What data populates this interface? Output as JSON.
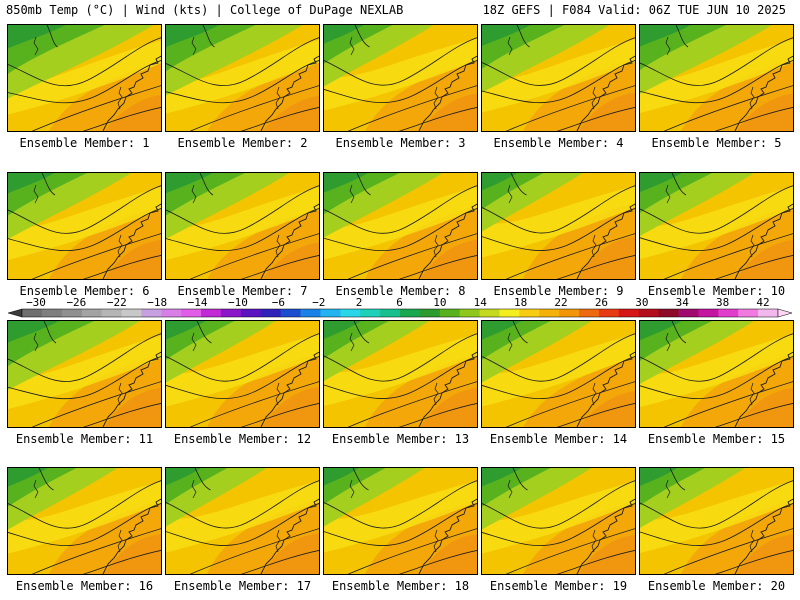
{
  "header": {
    "left": "850mb Temp (°C) | Wind (kts) | College of DuPage NEXLAB",
    "right": "18Z GEFS | F084 Valid: 06Z TUE JUN 10 2025"
  },
  "members": [
    {
      "label": "Ensemble Member: 1"
    },
    {
      "label": "Ensemble Member: 2"
    },
    {
      "label": "Ensemble Member: 3"
    },
    {
      "label": "Ensemble Member: 4"
    },
    {
      "label": "Ensemble Member: 5"
    },
    {
      "label": "Ensemble Member: 6"
    },
    {
      "label": "Ensemble Member: 7"
    },
    {
      "label": "Ensemble Member: 8"
    },
    {
      "label": "Ensemble Member: 9"
    },
    {
      "label": "Ensemble Member: 10"
    },
    {
      "label": "Ensemble Member: 11"
    },
    {
      "label": "Ensemble Member: 12"
    },
    {
      "label": "Ensemble Member: 13"
    },
    {
      "label": "Ensemble Member: 14"
    },
    {
      "label": "Ensemble Member: 15"
    },
    {
      "label": "Ensemble Member: 16"
    },
    {
      "label": "Ensemble Member: 17"
    },
    {
      "label": "Ensemble Member: 18"
    },
    {
      "label": "Ensemble Member: 19"
    },
    {
      "label": "Ensemble Member: 20"
    }
  ],
  "colorbar": {
    "labels": [
      "−30",
      "−26",
      "−22",
      "−18",
      "−14",
      "−10",
      "−6",
      "−2",
      "2",
      "6",
      "10",
      "14",
      "18",
      "22",
      "26",
      "30",
      "34",
      "38",
      "42"
    ],
    "colors": [
      "#6f6f6f",
      "#7f7f7f",
      "#8f8f8f",
      "#a3a3a3",
      "#b5b5b5",
      "#c8c8c8",
      "#c7a0e0",
      "#d77fe6",
      "#e15de8",
      "#c02bd6",
      "#8a17c9",
      "#5b14c2",
      "#2f22b8",
      "#1b4fd0",
      "#1a82e6",
      "#22b3f0",
      "#2ad6e8",
      "#20d0b8",
      "#18c090",
      "#19a850",
      "#2e9b2e",
      "#58b21e",
      "#8fc71d",
      "#c5da1e",
      "#f2ee20",
      "#f7cc13",
      "#f4b10a",
      "#f2950a",
      "#ee6a10",
      "#e83a14",
      "#d61616",
      "#b40d1e",
      "#8c0a28",
      "#a00a6e",
      "#c414a0",
      "#e23ccc",
      "#f07ae0",
      "#f2b8ee"
    ],
    "accent_low": "#3c3c3c",
    "accent_high": "#ffd6f4"
  },
  "map_colors": {
    "dark_green": "#2f9c2f",
    "mid_green": "#58b21e",
    "light_green": "#a4cf1f",
    "yellow_green": "#cfdd20",
    "yellow": "#f7e114",
    "gold": "#f4c400",
    "orange": "#f2a20a",
    "deep_orange": "#ee8a14",
    "contour": "#1a1a1a"
  }
}
